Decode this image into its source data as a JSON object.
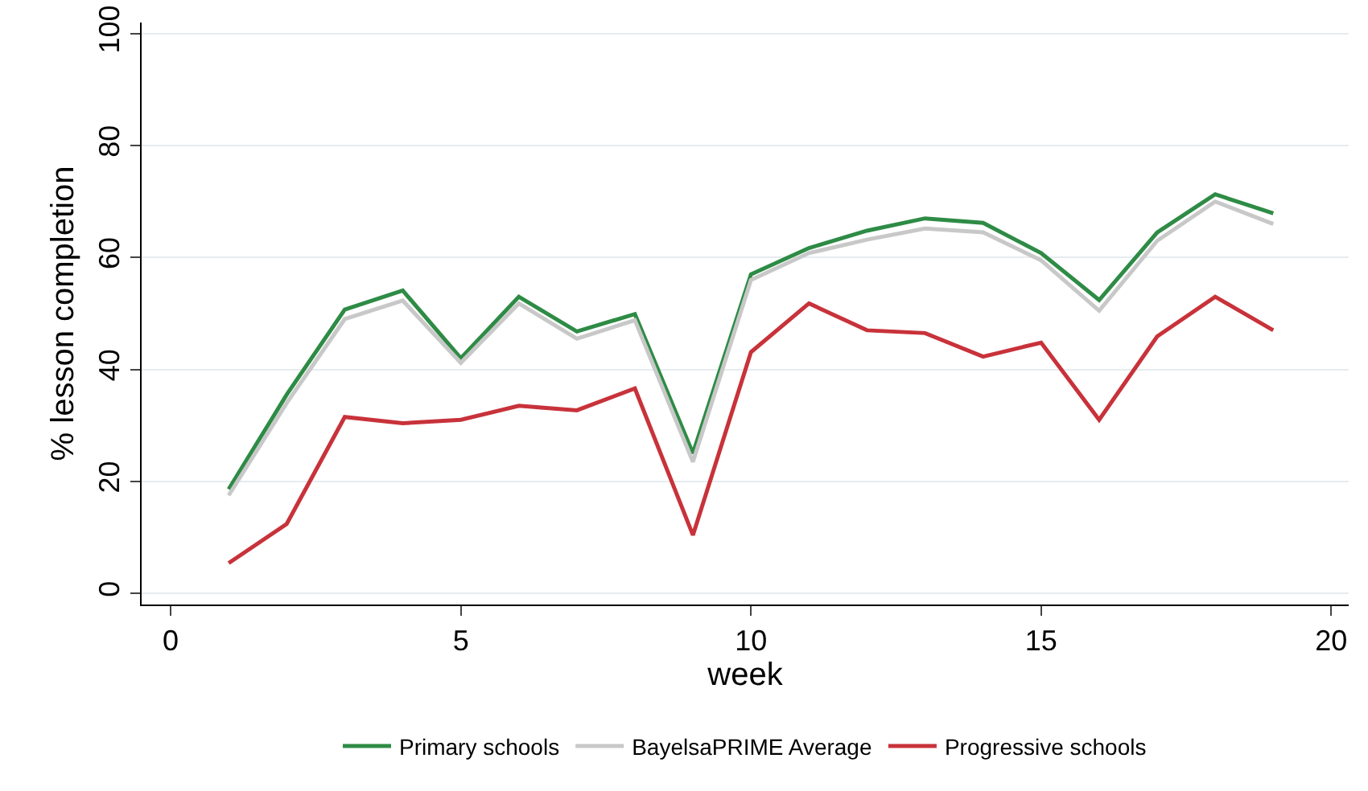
{
  "chart_data": {
    "type": "line",
    "xlabel": "week",
    "ylabel": "% lesson completion",
    "x": [
      1,
      2,
      3,
      4,
      5,
      6,
      7,
      8,
      9,
      10,
      11,
      12,
      13,
      14,
      15,
      16,
      17,
      18,
      19
    ],
    "series": [
      {
        "name": "Primary schools",
        "color": "#2e8b45",
        "values": [
          18.6,
          35.5,
          50.7,
          54.1,
          42,
          53,
          46.8,
          49.9,
          25,
          57,
          61.7,
          64.8,
          67,
          66.2,
          60.8,
          52.4,
          64.5,
          71.3,
          67.9
        ]
      },
      {
        "name": "BayelsaPRIME Average",
        "color": "#c8c8c8",
        "values": [
          17.5,
          34,
          49,
          52.3,
          41.2,
          51.8,
          45.5,
          48.8,
          23.5,
          56,
          60.8,
          63.2,
          65.2,
          64.5,
          59.5,
          50.5,
          63,
          70,
          66
        ]
      },
      {
        "name": "Progressive schools",
        "color": "#c8323a",
        "values": [
          5.4,
          12.4,
          31.5,
          30.4,
          31,
          33.5,
          32.7,
          36.6,
          10.4,
          43.1,
          51.8,
          47,
          46.5,
          42.3,
          44.8,
          31,
          45.9,
          53,
          47
        ]
      }
    ],
    "xlim": [
      -0.5,
      20.3
    ],
    "xticks": [
      0,
      5,
      10,
      15,
      20
    ],
    "ylim": [
      -2,
      102
    ],
    "yticks": [
      0,
      20,
      40,
      60,
      80,
      100
    ],
    "grid": "y",
    "legend": "bottom",
    "marker": "none",
    "line_style": "solid"
  }
}
